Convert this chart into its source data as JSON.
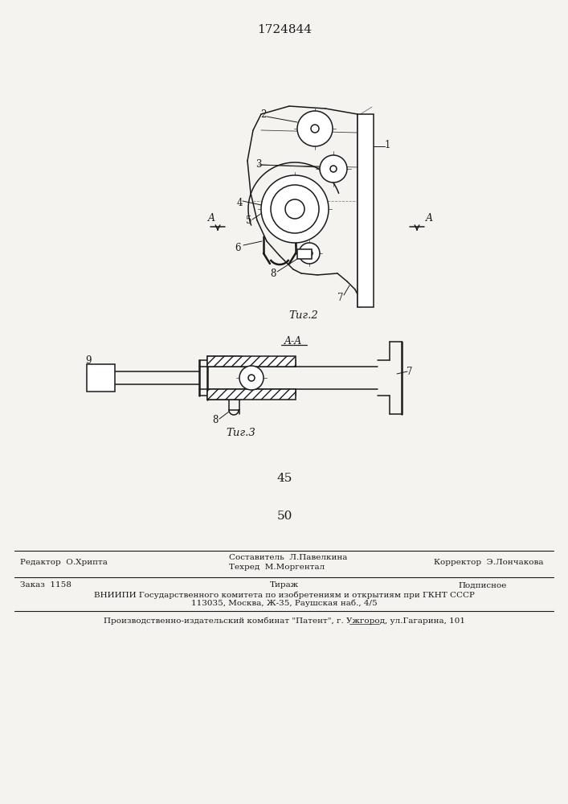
{
  "title_number": "1724844",
  "fig2_caption": "Τиг.2",
  "fig3_caption": "Τиг.3",
  "section_label": "A-A",
  "number45": "45",
  "number50": "50",
  "footer_line1_left": "Редактор  О.Хрипта",
  "footer_sestavitel": "Составитель  Л.Павелкина",
  "footer_tehred": "Техред  М.Моргентал",
  "footer_line1_right": "Корректор  Э.Лончакова",
  "footer_zakaz": "Заказ  1158",
  "footer_tirazh": "Тираж",
  "footer_podpisnoe": "Подписное",
  "footer_vniip": "ВНИИПИ Государственного комитета по изобретениям и открытиям при ГКНТ СССР",
  "footer_address": "113035, Москва, Ж-35, Раушская наб., 4/5",
  "footer_patent": "Производственно-издательский комбинат \"Патент\", г. Ужгород, ул.Гагарина, 101",
  "bg_color": "#f5f3f0",
  "line_color": "#1a1a1a"
}
